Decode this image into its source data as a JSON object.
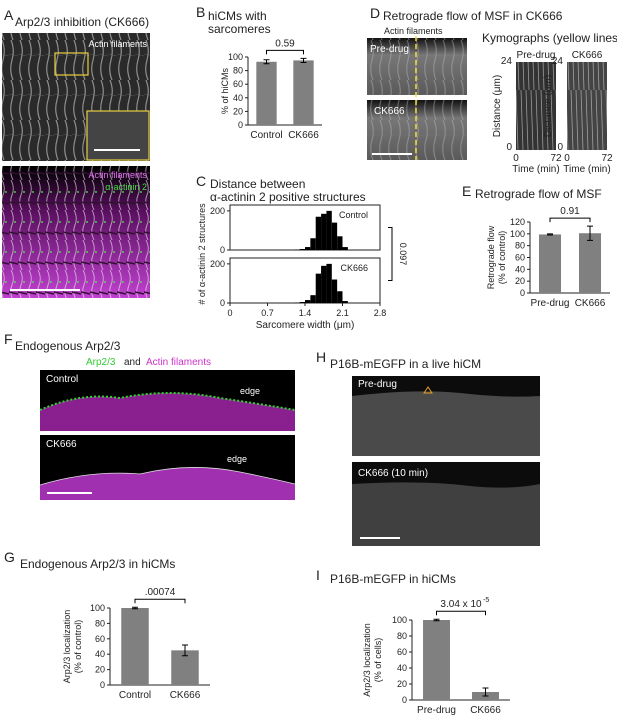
{
  "panels": {
    "A": {
      "label": "A",
      "title": "Arp2/3 inhibition (CK666)",
      "top_label": "Actin filaments",
      "bottom_labels": [
        "Actin filaments",
        "α-actinin 2"
      ]
    },
    "D": {
      "label": "D",
      "title": "Retrograde flow of MSF in CK666",
      "image_label": "Actin filaments",
      "conditions": [
        "Pre-drug",
        "CK666"
      ],
      "kymo_title": "Kymographs (yellow lines)",
      "kymo_conditions": [
        "Pre-drug",
        "CK666"
      ],
      "kymo_ylabel": "Distance (μm)",
      "kymo_xlabel": "Time (min)",
      "kymo_yticks": [
        "0",
        "24"
      ],
      "kymo_xticks": [
        "0",
        "72"
      ]
    },
    "F": {
      "label": "F",
      "title": "Endogenous Arp2/3",
      "legend": [
        "Arp2/3",
        "and",
        "Actin filaments"
      ],
      "conditions": [
        "Control",
        "CK666"
      ],
      "edge_label": "edge"
    },
    "H": {
      "label": "H",
      "title": "P16B-mEGFP in a live hiCM",
      "conditions": [
        "Pre-drug",
        "CK666 (10 min)"
      ]
    }
  },
  "chart_data": [
    {
      "label": "B",
      "type": "bar",
      "title": [
        "hiCMs with",
        "sarcomeres"
      ],
      "ylabel": [
        "% of hiCMs"
      ],
      "categories": [
        "Control",
        "CK666"
      ],
      "values": [
        93,
        95
      ],
      "errors": [
        3,
        3
      ],
      "color": "#808080",
      "ylim": [
        0,
        100
      ],
      "yticks": [
        0,
        20,
        40,
        60,
        80,
        100
      ],
      "annotation": "0.59"
    },
    {
      "label": "C",
      "type": "histogram",
      "title": [
        "Distance between",
        "α-actinin 2 positive structures"
      ],
      "ylabel": "# of α-actinin 2 structures",
      "xlabel": "Sarcomere width (μm)",
      "bins": [
        1.2,
        1.3,
        1.4,
        1.5,
        1.6,
        1.7,
        1.8,
        1.9,
        2.0,
        2.1,
        2.2
      ],
      "series": [
        {
          "name": "Control",
          "values": [
            2,
            5,
            15,
            60,
            170,
            185,
            200,
            140,
            70,
            15
          ]
        },
        {
          "name": "CK666",
          "values": [
            2,
            5,
            15,
            40,
            150,
            190,
            200,
            120,
            60,
            10
          ]
        }
      ],
      "color": "#000000",
      "xlim": [
        0,
        2.8
      ],
      "xticks": [
        0,
        0.7,
        1.4,
        2.1,
        2.8
      ],
      "ylim": [
        0,
        230
      ],
      "yticks": [
        0,
        200
      ],
      "annotation": "0.097"
    },
    {
      "label": "E",
      "type": "bar",
      "title": [
        "Retrograde flow of MSF"
      ],
      "ylabel": [
        "Retrograde flow",
        "(% of control)"
      ],
      "categories": [
        "Pre-drug",
        "CK666"
      ],
      "values": [
        99,
        101
      ],
      "errors": [
        1,
        12
      ],
      "color": "#808080",
      "ylim": [
        0,
        120
      ],
      "yticks": [
        0,
        20,
        40,
        60,
        80,
        100,
        120
      ],
      "annotation": "0.91"
    },
    {
      "label": "G",
      "type": "bar",
      "title": [
        "Endogenous Arp2/3 in hiCMs"
      ],
      "ylabel": [
        "Arp2/3 localization",
        "(% of control)"
      ],
      "categories": [
        "Control",
        "CK666"
      ],
      "values": [
        100,
        45
      ],
      "errors": [
        1,
        7
      ],
      "color": "#808080",
      "ylim": [
        0,
        100
      ],
      "yticks": [
        0,
        20,
        40,
        60,
        80,
        100
      ],
      "annotation": ".00074"
    },
    {
      "label": "I",
      "type": "bar",
      "title": [
        "P16B-mEGFP in hiCMs"
      ],
      "ylabel": [
        "Arp2/3 localization",
        "(% of cells)"
      ],
      "categories": [
        "Pre-drug",
        "CK666"
      ],
      "values": [
        100,
        10
      ],
      "errors": [
        1,
        5
      ],
      "color": "#808080",
      "ylim": [
        0,
        100
      ],
      "yticks": [
        0,
        20,
        40,
        60,
        80,
        100
      ],
      "annotation": "3.04 x 10",
      "annotation_exponent": "-5"
    }
  ]
}
